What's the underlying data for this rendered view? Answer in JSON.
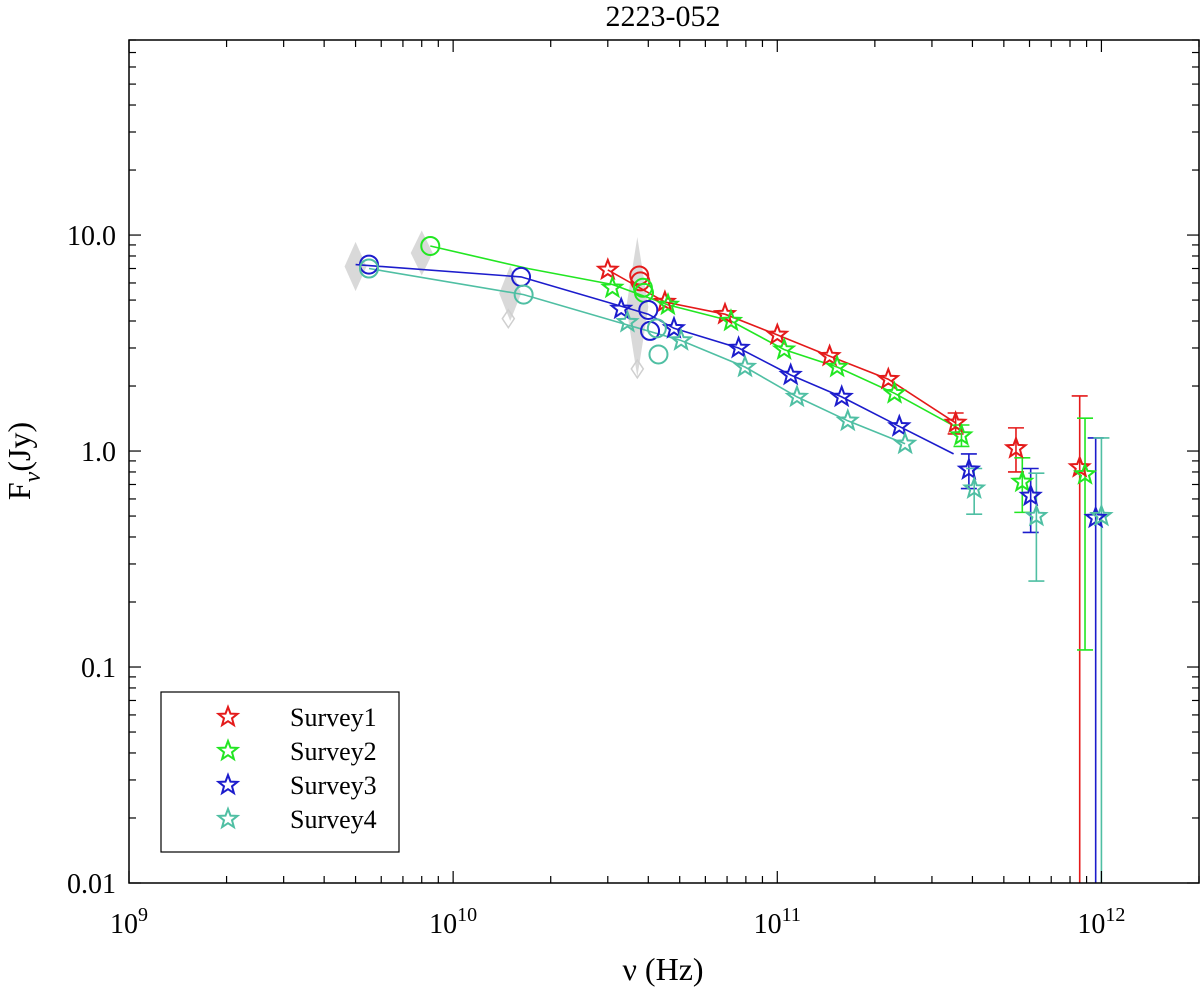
{
  "chart_data": {
    "type": "scatter",
    "title": "2223-052",
    "xlabel": "ν (Hz)",
    "ylabel_main": "F",
    "ylabel_sub": "ν",
    "ylabel_unit": "(Jy)",
    "x_scale": "log",
    "y_scale": "log",
    "xlim": [
      1000000000.0,
      2000000000000.0
    ],
    "ylim": [
      0.01,
      80
    ],
    "x_ticks": [
      {
        "value": 1000000000.0,
        "base": "10",
        "exp": "9"
      },
      {
        "value": 10000000000.0,
        "base": "10",
        "exp": "10"
      },
      {
        "value": 100000000000.0,
        "base": "10",
        "exp": "11"
      },
      {
        "value": 1000000000000.0,
        "base": "10",
        "exp": "12"
      }
    ],
    "y_ticks": [
      {
        "value": 0.01,
        "label": "0.01"
      },
      {
        "value": 0.1,
        "label": "0.1"
      },
      {
        "value": 1,
        "label": "1.0"
      },
      {
        "value": 10,
        "label": "10.0"
      }
    ],
    "grid": false,
    "legend_position": "bottom-left",
    "series": [
      {
        "name": "Survey1",
        "color": "#e41a1a",
        "stars": [
          {
            "x": 30000000000.0,
            "y": 6.9
          },
          {
            "x": 45000000000.0,
            "y": 4.9
          },
          {
            "x": 69000000000.0,
            "y": 4.3
          },
          {
            "x": 100000000000.0,
            "y": 3.45
          },
          {
            "x": 145000000000.0,
            "y": 2.75
          },
          {
            "x": 220000000000.0,
            "y": 2.15
          },
          {
            "x": 355000000000.0,
            "y": 1.35,
            "err": [
              1.2,
              1.5
            ]
          },
          {
            "x": 545000000000.0,
            "y": 1.03,
            "err": [
              0.8,
              1.28
            ]
          },
          {
            "x": 857000000000.0,
            "y": 0.84,
            "err": [
              0.005,
              1.8
            ]
          }
        ],
        "circles": [
          {
            "x": 37500000000.0,
            "y": 6.5
          },
          {
            "x": 37800000000.0,
            "y": 6.1
          }
        ],
        "line": [
          {
            "x": 30000000000.0,
            "y": 6.9
          },
          {
            "x": 45000000000.0,
            "y": 4.9
          },
          {
            "x": 69000000000.0,
            "y": 4.3
          },
          {
            "x": 100000000000.0,
            "y": 3.45
          },
          {
            "x": 145000000000.0,
            "y": 2.75
          },
          {
            "x": 220000000000.0,
            "y": 2.15
          },
          {
            "x": 355000000000.0,
            "y": 1.35
          }
        ]
      },
      {
        "name": "Survey2",
        "color": "#22e622",
        "stars": [
          {
            "x": 31000000000.0,
            "y": 5.7
          },
          {
            "x": 46000000000.0,
            "y": 4.75
          },
          {
            "x": 72000000000.0,
            "y": 4.0
          },
          {
            "x": 105000000000.0,
            "y": 2.95
          },
          {
            "x": 153000000000.0,
            "y": 2.45
          },
          {
            "x": 230000000000.0,
            "y": 1.85
          },
          {
            "x": 370000000000.0,
            "y": 1.18,
            "err": [
              1.05,
              1.32
            ]
          },
          {
            "x": 570000000000.0,
            "y": 0.72,
            "err": [
              0.52,
              0.93
            ]
          },
          {
            "x": 890000000000.0,
            "y": 0.78,
            "err": [
              0.12,
              1.42
            ]
          }
        ],
        "circles": [
          {
            "x": 8500000000.0,
            "y": 8.9
          },
          {
            "x": 38500000000.0,
            "y": 5.7
          },
          {
            "x": 38800000000.0,
            "y": 5.4
          }
        ],
        "line": [
          {
            "x": 8500000000.0,
            "y": 8.9
          },
          {
            "x": 17000000000.0,
            "y": 7.0
          },
          {
            "x": 31000000000.0,
            "y": 5.9
          },
          {
            "x": 46000000000.0,
            "y": 4.75
          },
          {
            "x": 72000000000.0,
            "y": 4.0
          },
          {
            "x": 105000000000.0,
            "y": 2.95
          },
          {
            "x": 153000000000.0,
            "y": 2.45
          },
          {
            "x": 230000000000.0,
            "y": 1.85
          },
          {
            "x": 370000000000.0,
            "y": 1.25
          }
        ]
      },
      {
        "name": "Survey3",
        "color": "#1c1ccc",
        "stars": [
          {
            "x": 33000000000.0,
            "y": 4.55
          },
          {
            "x": 48000000000.0,
            "y": 3.7
          },
          {
            "x": 76000000000.0,
            "y": 3.0
          },
          {
            "x": 110000000000.0,
            "y": 2.25
          },
          {
            "x": 158000000000.0,
            "y": 1.78
          },
          {
            "x": 238000000000.0,
            "y": 1.3
          },
          {
            "x": 390000000000.0,
            "y": 0.82,
            "err": [
              0.67,
              0.97
            ]
          },
          {
            "x": 605000000000.0,
            "y": 0.62,
            "err": [
              0.42,
              0.83
            ]
          },
          {
            "x": 960000000000.0,
            "y": 0.49,
            "err": [
              0.005,
              1.15
            ]
          }
        ],
        "circles": [
          {
            "x": 5500000000.0,
            "y": 7.3
          },
          {
            "x": 16200000000.0,
            "y": 6.4
          },
          {
            "x": 40000000000.0,
            "y": 4.5
          },
          {
            "x": 40500000000.0,
            "y": 3.6
          }
        ],
        "line": [
          {
            "x": 5000000000.0,
            "y": 7.3
          },
          {
            "x": 16200000000.0,
            "y": 6.4
          },
          {
            "x": 40000000000.0,
            "y": 4.3
          },
          {
            "x": 48000000000.0,
            "y": 3.7
          },
          {
            "x": 76000000000.0,
            "y": 3.0
          },
          {
            "x": 110000000000.0,
            "y": 2.25
          },
          {
            "x": 158000000000.0,
            "y": 1.78
          },
          {
            "x": 238000000000.0,
            "y": 1.3
          },
          {
            "x": 350000000000.0,
            "y": 0.97
          }
        ]
      },
      {
        "name": "Survey4",
        "color": "#4fbfa3",
        "stars": [
          {
            "x": 34500000000.0,
            "y": 3.95
          },
          {
            "x": 50500000000.0,
            "y": 3.25
          },
          {
            "x": 79500000000.0,
            "y": 2.45
          },
          {
            "x": 115000000000.0,
            "y": 1.78
          },
          {
            "x": 165000000000.0,
            "y": 1.38
          },
          {
            "x": 248000000000.0,
            "y": 1.08
          },
          {
            "x": 405000000000.0,
            "y": 0.67,
            "err": [
              0.51,
              0.83
            ]
          },
          {
            "x": 630000000000.0,
            "y": 0.5,
            "err": [
              0.25,
              0.79
            ]
          },
          {
            "x": 1000000000000.0,
            "y": 0.5,
            "err": [
              0.005,
              1.15
            ]
          }
        ],
        "circles": [
          {
            "x": 5500000000.0,
            "y": 7.0
          },
          {
            "x": 16500000000.0,
            "y": 5.3
          },
          {
            "x": 42500000000.0,
            "y": 3.7
          },
          {
            "x": 43000000000.0,
            "y": 2.8
          }
        ],
        "line": [
          {
            "x": 5500000000.0,
            "y": 7.0
          },
          {
            "x": 16500000000.0,
            "y": 5.3
          },
          {
            "x": 42500000000.0,
            "y": 3.5
          },
          {
            "x": 50500000000.0,
            "y": 3.25
          },
          {
            "x": 79500000000.0,
            "y": 2.45
          },
          {
            "x": 115000000000.0,
            "y": 1.78
          },
          {
            "x": 165000000000.0,
            "y": 1.38
          },
          {
            "x": 248000000000.0,
            "y": 1.08
          }
        ]
      }
    ],
    "reference_points": {
      "color": "#d9d9d9",
      "diamonds": [
        {
          "x": 5000000000.0,
          "y": 7.3,
          "ylow": 5.5,
          "yhigh": 9.3
        },
        {
          "x": 8000000000.0,
          "y": 8.5,
          "ylow": 6.5,
          "yhigh": 10.5
        },
        {
          "x": 15000000000.0,
          "y": 5.4,
          "ylow": 4.0,
          "yhigh": 7.2
        },
        {
          "x": 37000000000.0,
          "y": 4.5,
          "ylow": 2.2,
          "yhigh": 9.8
        }
      ],
      "open_diamonds": [
        {
          "x": 14800000000.0,
          "y": 4.1
        },
        {
          "x": 37000000000.0,
          "y": 2.4
        }
      ]
    }
  }
}
